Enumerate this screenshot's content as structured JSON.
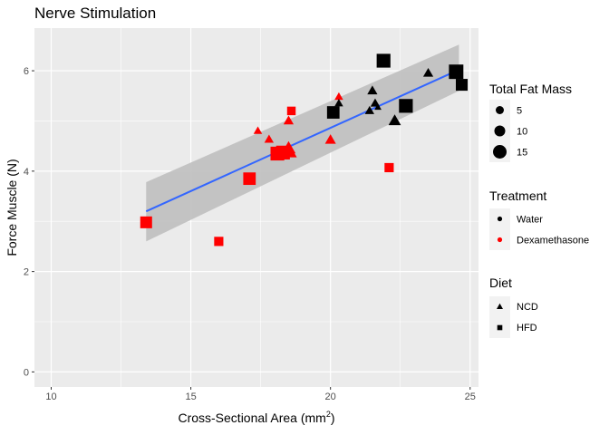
{
  "chart_data": {
    "type": "scatter",
    "title": "Nerve Stimulation",
    "xlabel": "Cross-Sectional Area (mm",
    "xlabel_sup": "2",
    "xlabel_close": ")",
    "ylabel": "Force Muscle (N)",
    "xlim": [
      9.4,
      25.3
    ],
    "ylim": [
      -0.3,
      6.85
    ],
    "x_ticks": [
      10,
      15,
      20,
      25
    ],
    "y_ticks": [
      0,
      2,
      4,
      6
    ],
    "x_tick_labels": [
      "10",
      "15",
      "20",
      "25"
    ],
    "y_tick_labels": [
      "0",
      "2",
      "4",
      "6"
    ],
    "grid": true,
    "legend_position": "right",
    "colors": {
      "panel": "#EBEBEB",
      "grid": "#FFFFFF",
      "water": "#000000",
      "dexamethasone": "#FF0000",
      "fit": "#3366FF",
      "band": "#BFBFBF"
    },
    "fit": {
      "method": "linear",
      "x": [
        13.4,
        24.6
      ],
      "y": [
        3.2,
        6.02
      ],
      "band_upper": [
        3.78,
        6.52
      ],
      "band_lower": [
        2.6,
        5.6
      ]
    },
    "points": [
      {
        "x": 13.4,
        "y": 2.98,
        "treatment": "Dexamethasone",
        "diet": "HFD",
        "fat_mass": 12
      },
      {
        "x": 16.0,
        "y": 2.6,
        "treatment": "Dexamethasone",
        "diet": "HFD",
        "fat_mass": 8
      },
      {
        "x": 17.1,
        "y": 3.85,
        "treatment": "Dexamethasone",
        "diet": "HFD",
        "fat_mass": 13
      },
      {
        "x": 17.4,
        "y": 4.8,
        "treatment": "Dexamethasone",
        "diet": "NCD",
        "fat_mass": 5
      },
      {
        "x": 17.8,
        "y": 4.63,
        "treatment": "Dexamethasone",
        "diet": "NCD",
        "fat_mass": 6
      },
      {
        "x": 18.1,
        "y": 4.35,
        "treatment": "Dexamethasone",
        "diet": "HFD",
        "fat_mass": 15
      },
      {
        "x": 18.3,
        "y": 4.37,
        "treatment": "Dexamethasone",
        "diet": "HFD",
        "fat_mass": 15
      },
      {
        "x": 18.5,
        "y": 4.45,
        "treatment": "Dexamethasone",
        "diet": "NCD",
        "fat_mass": 12
      },
      {
        "x": 18.5,
        "y": 5.0,
        "treatment": "Dexamethasone",
        "diet": "NCD",
        "fat_mass": 7
      },
      {
        "x": 18.6,
        "y": 5.2,
        "treatment": "Dexamethasone",
        "diet": "HFD",
        "fat_mass": 7
      },
      {
        "x": 18.6,
        "y": 4.35,
        "treatment": "Dexamethasone",
        "diet": "NCD",
        "fat_mass": 8
      },
      {
        "x": 20.0,
        "y": 4.62,
        "treatment": "Dexamethasone",
        "diet": "NCD",
        "fat_mass": 8
      },
      {
        "x": 20.3,
        "y": 5.48,
        "treatment": "Dexamethasone",
        "diet": "NCD",
        "fat_mass": 5
      },
      {
        "x": 22.1,
        "y": 4.07,
        "treatment": "Dexamethasone",
        "diet": "HFD",
        "fat_mass": 8
      },
      {
        "x": 20.1,
        "y": 5.17,
        "treatment": "Water",
        "diet": "HFD",
        "fat_mass": 13
      },
      {
        "x": 20.3,
        "y": 5.35,
        "treatment": "Water",
        "diet": "NCD",
        "fat_mass": 5
      },
      {
        "x": 21.4,
        "y": 5.2,
        "treatment": "Water",
        "diet": "NCD",
        "fat_mass": 6
      },
      {
        "x": 21.5,
        "y": 5.6,
        "treatment": "Water",
        "diet": "NCD",
        "fat_mass": 7
      },
      {
        "x": 21.6,
        "y": 5.35,
        "treatment": "Water",
        "diet": "NCD",
        "fat_mass": 6
      },
      {
        "x": 21.7,
        "y": 5.27,
        "treatment": "Water",
        "diet": "NCD",
        "fat_mass": 3
      },
      {
        "x": 21.9,
        "y": 6.2,
        "treatment": "Water",
        "diet": "HFD",
        "fat_mass": 15
      },
      {
        "x": 22.3,
        "y": 5.0,
        "treatment": "Water",
        "diet": "NCD",
        "fat_mass": 10
      },
      {
        "x": 22.7,
        "y": 5.3,
        "treatment": "Water",
        "diet": "HFD",
        "fat_mass": 15
      },
      {
        "x": 23.5,
        "y": 5.95,
        "treatment": "Water",
        "diet": "NCD",
        "fat_mass": 7
      },
      {
        "x": 24.5,
        "y": 5.98,
        "treatment": "Water",
        "diet": "HFD",
        "fat_mass": 16
      },
      {
        "x": 24.7,
        "y": 5.72,
        "treatment": "Water",
        "diet": "HFD",
        "fat_mass": 12
      }
    ],
    "legends": {
      "size": {
        "title": "Total Fat Mass",
        "labels": [
          "5",
          "10",
          "15"
        ],
        "values": [
          5,
          10,
          15
        ]
      },
      "treatment": {
        "title": "Treatment",
        "labels": [
          "Water",
          "Dexamethasone"
        ]
      },
      "diet": {
        "title": "Diet",
        "labels": [
          "NCD",
          "HFD"
        ]
      }
    }
  }
}
